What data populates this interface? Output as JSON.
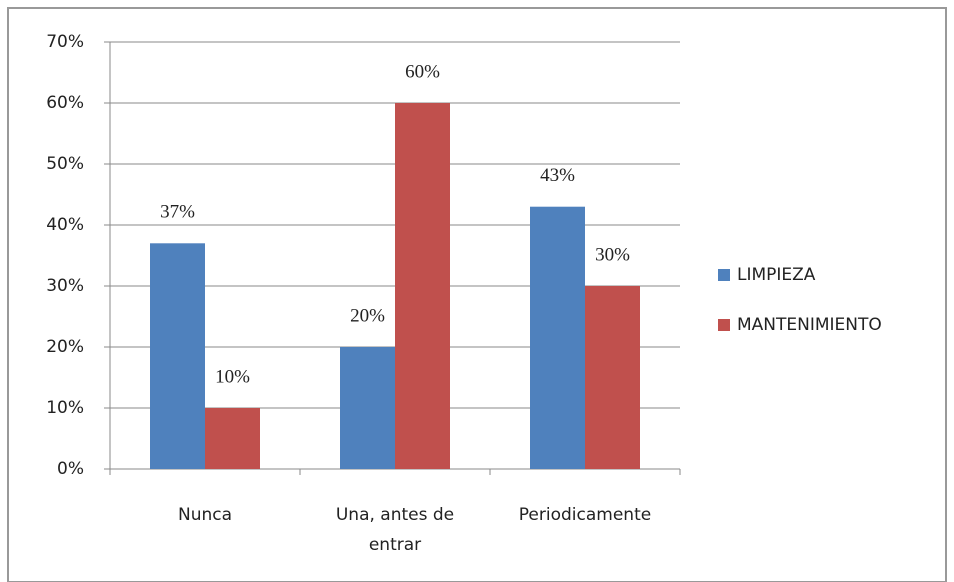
{
  "chart_data": {
    "type": "bar",
    "categories": [
      "Nunca",
      "Una, antes de entrar",
      "Periodicamente"
    ],
    "series": [
      {
        "name": "LIMPIEZA",
        "color": "#4f81bd",
        "values": [
          37,
          20,
          43
        ],
        "value_labels": [
          "37%",
          "20%",
          "43%"
        ]
      },
      {
        "name": "MANTENIMIENTO",
        "color": "#c0504d",
        "values": [
          10,
          60,
          30
        ],
        "value_labels": [
          "10%",
          "60%",
          "30%"
        ]
      }
    ],
    "ylim": [
      0,
      70
    ],
    "yticks": [
      {
        "value": 0,
        "label": "0%"
      },
      {
        "value": 10,
        "label": "10%"
      },
      {
        "value": 20,
        "label": "20%"
      },
      {
        "value": 30,
        "label": "30%"
      },
      {
        "value": 40,
        "label": "40%"
      },
      {
        "value": 50,
        "label": "50%"
      },
      {
        "value": 60,
        "label": "60%"
      },
      {
        "value": 70,
        "label": "70%"
      }
    ],
    "grid": true,
    "legend": "right"
  }
}
